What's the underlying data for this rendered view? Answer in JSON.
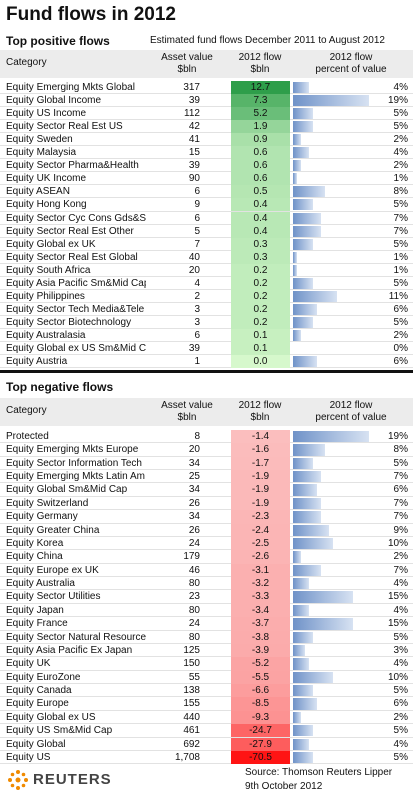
{
  "title": "Fund flows in 2012",
  "subtitle": "Estimated fund flows December 2011 to August 2012",
  "positive": {
    "heading": "Top positive flows",
    "columns": {
      "category": "Category",
      "asset": "Asset value",
      "asset_unit": "$bln",
      "flow": "2012 flow",
      "flow_unit": "$bln",
      "pct": "2012 flow",
      "pct_unit": "percent of value"
    },
    "rows": [
      {
        "category": "Equity Emerging Mkts Global",
        "asset": "317",
        "flow": 12.7,
        "flow_label": "12.7",
        "pct": 4,
        "pct_label": "4%"
      },
      {
        "category": "Equity Global Income",
        "asset": "39",
        "flow": 7.3,
        "flow_label": "7.3",
        "pct": 19,
        "pct_label": "19%"
      },
      {
        "category": "Equity US Income",
        "asset": "112",
        "flow": 5.2,
        "flow_label": "5.2",
        "pct": 5,
        "pct_label": "5%"
      },
      {
        "category": "Equity Sector Real Est US",
        "asset": "42",
        "flow": 1.9,
        "flow_label": "1.9",
        "pct": 5,
        "pct_label": "5%"
      },
      {
        "category": "Equity Sweden",
        "asset": "41",
        "flow": 0.9,
        "flow_label": "0.9",
        "pct": 2,
        "pct_label": "2%"
      },
      {
        "category": "Equity Malaysia",
        "asset": "15",
        "flow": 0.6,
        "flow_label": "0.6",
        "pct": 4,
        "pct_label": "4%"
      },
      {
        "category": "Equity Sector Pharma&Health",
        "asset": "39",
        "flow": 0.6,
        "flow_label": "0.6",
        "pct": 2,
        "pct_label": "2%"
      },
      {
        "category": "Equity UK Income",
        "asset": "90",
        "flow": 0.6,
        "flow_label": "0.6",
        "pct": 1,
        "pct_label": "1%"
      },
      {
        "category": "Equity ASEAN",
        "asset": "6",
        "flow": 0.5,
        "flow_label": "0.5",
        "pct": 8,
        "pct_label": "8%"
      },
      {
        "category": "Equity Hong Kong",
        "asset": "9",
        "flow": 0.4,
        "flow_label": "0.4",
        "pct": 5,
        "pct_label": "5%"
      },
      {
        "category": "Equity Sector Cyc Cons Gds&Sv",
        "asset": "6",
        "flow": 0.4,
        "flow_label": "0.4",
        "pct": 7,
        "pct_label": "7%"
      },
      {
        "category": "Equity Sector Real Est Other",
        "asset": "5",
        "flow": 0.4,
        "flow_label": "0.4",
        "pct": 7,
        "pct_label": "7%"
      },
      {
        "category": "Equity Global ex UK",
        "asset": "7",
        "flow": 0.3,
        "flow_label": "0.3",
        "pct": 5,
        "pct_label": "5%"
      },
      {
        "category": "Equity Sector Real Est Global",
        "asset": "40",
        "flow": 0.3,
        "flow_label": "0.3",
        "pct": 1,
        "pct_label": "1%"
      },
      {
        "category": "Equity South Africa",
        "asset": "20",
        "flow": 0.2,
        "flow_label": "0.2",
        "pct": 1,
        "pct_label": "1%"
      },
      {
        "category": "Equity Asia Pacific Sm&Mid Cap",
        "asset": "4",
        "flow": 0.2,
        "flow_label": "0.2",
        "pct": 5,
        "pct_label": "5%"
      },
      {
        "category": "Equity Philippines",
        "asset": "2",
        "flow": 0.2,
        "flow_label": "0.2",
        "pct": 11,
        "pct_label": "11%"
      },
      {
        "category": "Equity Sector Tech Media&Tele",
        "asset": "3",
        "flow": 0.2,
        "flow_label": "0.2",
        "pct": 6,
        "pct_label": "6%"
      },
      {
        "category": "Equity Sector Biotechnology",
        "asset": "3",
        "flow": 0.2,
        "flow_label": "0.2",
        "pct": 5,
        "pct_label": "5%"
      },
      {
        "category": "Equity Australasia",
        "asset": "6",
        "flow": 0.1,
        "flow_label": "0.1",
        "pct": 2,
        "pct_label": "2%"
      },
      {
        "category": "Equity Global ex US Sm&Mid Ca",
        "asset": "39",
        "flow": 0.1,
        "flow_label": "0.1",
        "pct": 0,
        "pct_label": "0%"
      },
      {
        "category": "Equity Austria",
        "asset": "1",
        "flow": 0.0,
        "flow_label": "0.0",
        "pct": 6,
        "pct_label": "6%"
      }
    ]
  },
  "negative": {
    "heading": "Top negative flows",
    "columns": {
      "category": "Category",
      "asset": "Asset value",
      "asset_unit": "$bln",
      "flow": "2012 flow",
      "flow_unit": "$bln",
      "pct": "2012 flow",
      "pct_unit": "percent of value"
    },
    "rows": [
      {
        "category": "Protected",
        "asset": "8",
        "flow": -1.4,
        "flow_label": "-1.4",
        "pct": 19,
        "pct_label": "19%"
      },
      {
        "category": "Equity Emerging Mkts Europe",
        "asset": "20",
        "flow": -1.6,
        "flow_label": "-1.6",
        "pct": 8,
        "pct_label": "8%"
      },
      {
        "category": "Equity Sector Information Tech",
        "asset": "34",
        "flow": -1.7,
        "flow_label": "-1.7",
        "pct": 5,
        "pct_label": "5%"
      },
      {
        "category": "Equity Emerging Mkts Latin Am",
        "asset": "25",
        "flow": -1.9,
        "flow_label": "-1.9",
        "pct": 7,
        "pct_label": "7%"
      },
      {
        "category": "Equity Global Sm&Mid Cap",
        "asset": "34",
        "flow": -1.9,
        "flow_label": "-1.9",
        "pct": 6,
        "pct_label": "6%"
      },
      {
        "category": "Equity Switzerland",
        "asset": "26",
        "flow": -1.9,
        "flow_label": "-1.9",
        "pct": 7,
        "pct_label": "7%"
      },
      {
        "category": "Equity Germany",
        "asset": "34",
        "flow": -2.3,
        "flow_label": "-2.3",
        "pct": 7,
        "pct_label": "7%"
      },
      {
        "category": "Equity Greater China",
        "asset": "26",
        "flow": -2.4,
        "flow_label": "-2.4",
        "pct": 9,
        "pct_label": "9%"
      },
      {
        "category": "Equity Korea",
        "asset": "24",
        "flow": -2.5,
        "flow_label": "-2.5",
        "pct": 10,
        "pct_label": "10%"
      },
      {
        "category": "Equity China",
        "asset": "179",
        "flow": -2.6,
        "flow_label": "-2.6",
        "pct": 2,
        "pct_label": "2%"
      },
      {
        "category": "Equity Europe ex UK",
        "asset": "46",
        "flow": -3.1,
        "flow_label": "-3.1",
        "pct": 7,
        "pct_label": "7%"
      },
      {
        "category": "Equity Australia",
        "asset": "80",
        "flow": -3.2,
        "flow_label": "-3.2",
        "pct": 4,
        "pct_label": "4%"
      },
      {
        "category": "Equity Sector Utilities",
        "asset": "23",
        "flow": -3.3,
        "flow_label": "-3.3",
        "pct": 15,
        "pct_label": "15%"
      },
      {
        "category": "Equity Japan",
        "asset": "80",
        "flow": -3.4,
        "flow_label": "-3.4",
        "pct": 4,
        "pct_label": "4%"
      },
      {
        "category": "Equity France",
        "asset": "24",
        "flow": -3.7,
        "flow_label": "-3.7",
        "pct": 15,
        "pct_label": "15%"
      },
      {
        "category": "Equity Sector Natural Resource",
        "asset": "80",
        "flow": -3.8,
        "flow_label": "-3.8",
        "pct": 5,
        "pct_label": "5%"
      },
      {
        "category": "Equity Asia Pacific Ex Japan",
        "asset": "125",
        "flow": -3.9,
        "flow_label": "-3.9",
        "pct": 3,
        "pct_label": "3%"
      },
      {
        "category": "Equity UK",
        "asset": "150",
        "flow": -5.2,
        "flow_label": "-5.2",
        "pct": 4,
        "pct_label": "4%"
      },
      {
        "category": "Equity EuroZone",
        "asset": "55",
        "flow": -5.5,
        "flow_label": "-5.5",
        "pct": 10,
        "pct_label": "10%"
      },
      {
        "category": "Equity Canada",
        "asset": "138",
        "flow": -6.6,
        "flow_label": "-6.6",
        "pct": 5,
        "pct_label": "5%"
      },
      {
        "category": "Equity Europe",
        "asset": "155",
        "flow": -8.5,
        "flow_label": "-8.5",
        "pct": 6,
        "pct_label": "6%"
      },
      {
        "category": "Equity Global ex US",
        "asset": "440",
        "flow": -9.3,
        "flow_label": "-9.3",
        "pct": 2,
        "pct_label": "2%"
      },
      {
        "category": "Equity US Sm&Mid Cap",
        "asset": "461",
        "flow": -24.7,
        "flow_label": "-24.7",
        "pct": 5,
        "pct_label": "5%"
      },
      {
        "category": "Equity Global",
        "asset": "692",
        "flow": -27.9,
        "flow_label": "-27.9",
        "pct": 4,
        "pct_label": "4%"
      },
      {
        "category": "Equity US",
        "asset": "1,708",
        "flow": -70.5,
        "flow_label": "-70.5",
        "pct": 5,
        "pct_label": "5%"
      }
    ]
  },
  "footer": {
    "brand": "REUTERS",
    "source": "Source: Thomson Reuters Lipper",
    "date": "9th October 2012"
  }
}
